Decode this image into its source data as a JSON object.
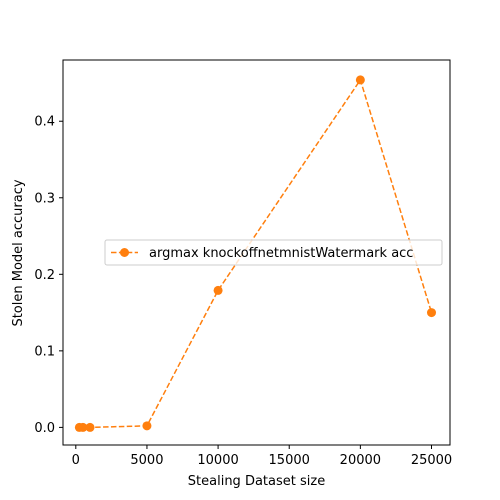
{
  "chart_data": {
    "type": "line",
    "title": "",
    "xlabel": "Stealing Dataset size",
    "ylabel": "Stolen Model accuracy",
    "xlim": [
      -900,
      26300
    ],
    "ylim": [
      -0.023,
      0.48
    ],
    "xticks": [
      0,
      5000,
      10000,
      15000,
      20000,
      25000
    ],
    "xtick_labels": [
      "0",
      "5000",
      "10000",
      "15000",
      "20000",
      "25000"
    ],
    "yticks": [
      0.0,
      0.1,
      0.2,
      0.3,
      0.4
    ],
    "ytick_labels": [
      "0.0",
      "0.1",
      "0.2",
      "0.3",
      "0.4"
    ],
    "grid": false,
    "legend_placement": "center",
    "series": [
      {
        "name": "argmax knockoffnetmnistWatermark acc",
        "color": "#ff7f0e",
        "line_style": "dashed",
        "marker": "circle",
        "x": [
          250,
          500,
          1000,
          5000,
          10000,
          20000,
          25000
        ],
        "y": [
          0.0,
          0.0,
          0.0,
          0.002,
          0.179,
          0.454,
          0.15
        ]
      }
    ]
  }
}
